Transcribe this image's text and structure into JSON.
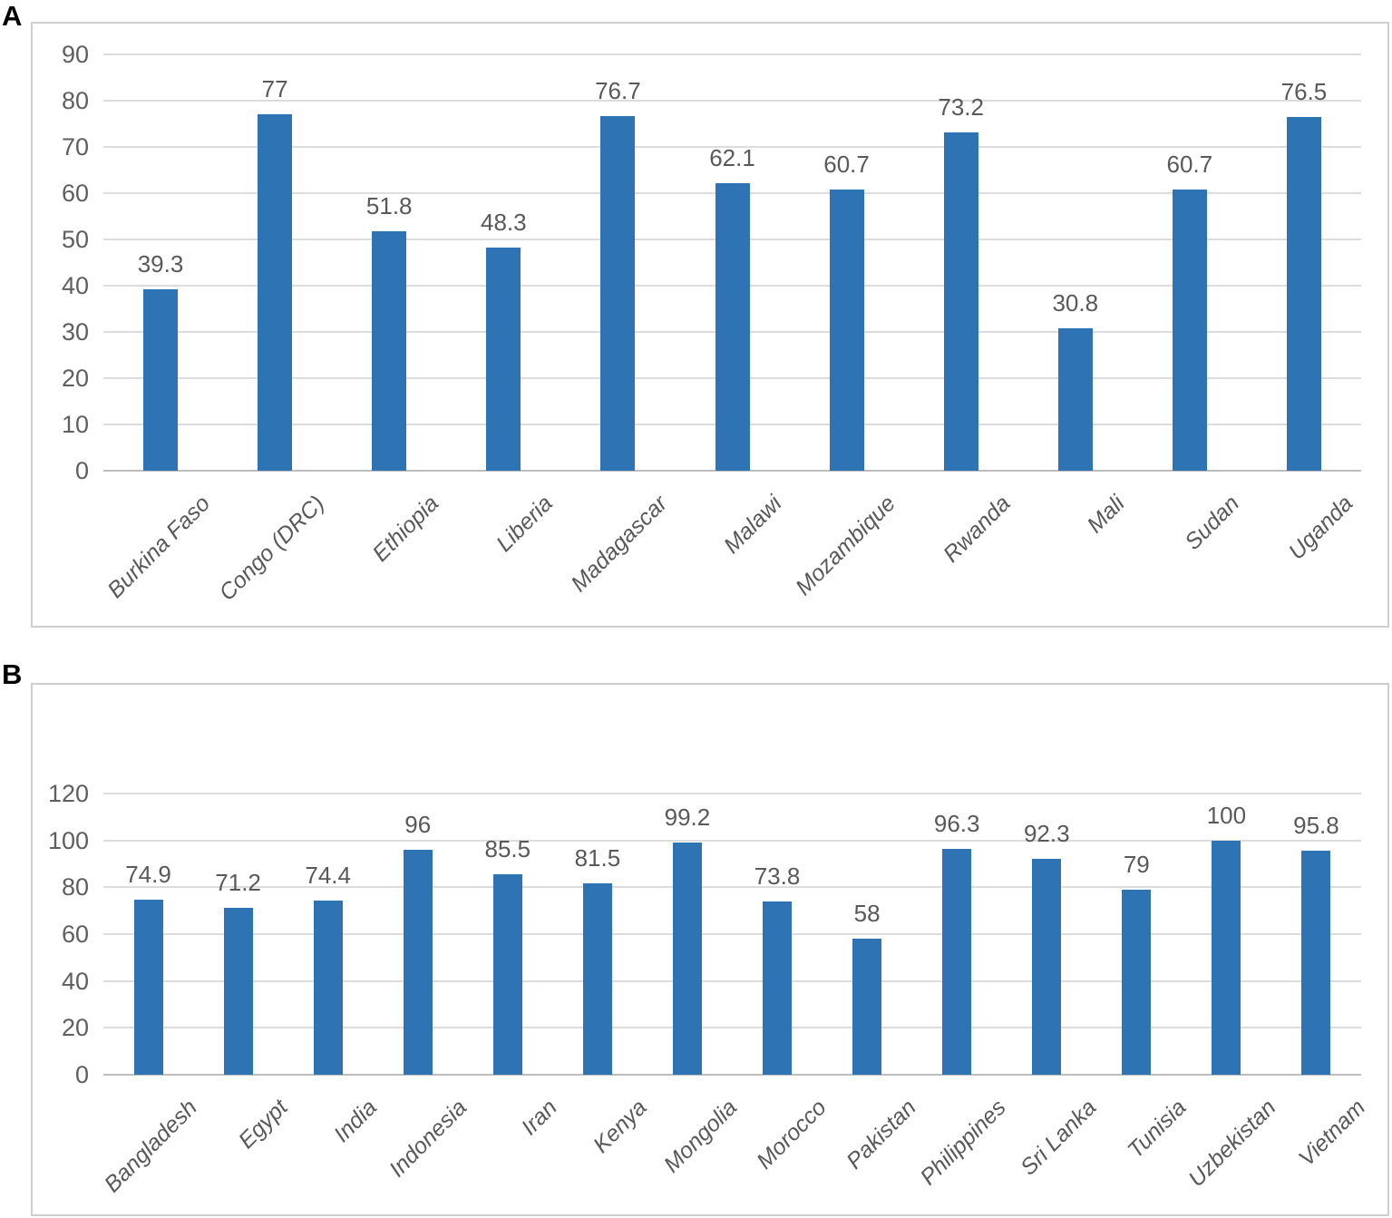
{
  "figure": {
    "panel_a_label": "A",
    "panel_b_label": "B"
  },
  "colors": {
    "bar": "#2e74b5",
    "gridline": "#dcdcdc",
    "axis_line": "#bdbdbd",
    "text": "#595959",
    "panel_border": "#cfcfcf",
    "panel_letter": "#000000",
    "background": "#ffffff"
  },
  "chart_data": [
    {
      "panel": "A",
      "type": "bar",
      "title": "",
      "xlabel": "",
      "ylabel": "",
      "categories": [
        "Burkina Faso",
        "Congo (DRC)",
        "Ethiopia",
        "Liberia",
        "Madagascar",
        "Malawi",
        "Mozambique",
        "Rwanda",
        "Mali",
        "Sudan",
        "Uganda"
      ],
      "values": [
        39.3,
        77,
        51.8,
        48.3,
        76.7,
        62.1,
        60.7,
        73.2,
        30.8,
        60.7,
        76.5
      ],
      "data_labels": [
        "39.3",
        "77",
        "51.8",
        "48.3",
        "76.7",
        "62.1",
        "60.7",
        "73.2",
        "30.8",
        "60.7",
        "76.5"
      ],
      "ylim": [
        0,
        90
      ],
      "yticks": [
        0,
        10,
        20,
        30,
        40,
        50,
        60,
        70,
        80,
        90
      ],
      "grid": true,
      "legend": false,
      "bar_color": "#2e74b5"
    },
    {
      "panel": "B",
      "type": "bar",
      "title": "",
      "xlabel": "",
      "ylabel": "",
      "categories": [
        "Bangladesh",
        "Egypt",
        "India",
        "Indonesia",
        "Iran",
        "Kenya",
        "Mongolia",
        "Morocco",
        "Pakistan",
        "Philippines",
        "Sri Lanka",
        "Tunisia",
        "Uzbekistan",
        "Vietnam"
      ],
      "values": [
        74.9,
        71.2,
        74.4,
        96,
        85.5,
        81.5,
        99.2,
        73.8,
        58,
        96.3,
        92.3,
        79,
        100,
        95.8
      ],
      "data_labels": [
        "74.9",
        "71.2",
        "74.4",
        "96",
        "85.5",
        "81.5",
        "99.2",
        "73.8",
        "58",
        "96.3",
        "92.3",
        "79",
        "100",
        "95.8"
      ],
      "ylim": [
        0,
        120
      ],
      "yticks": [
        0,
        20,
        40,
        60,
        80,
        100,
        120
      ],
      "grid": true,
      "legend": false,
      "bar_color": "#2e74b5"
    }
  ]
}
